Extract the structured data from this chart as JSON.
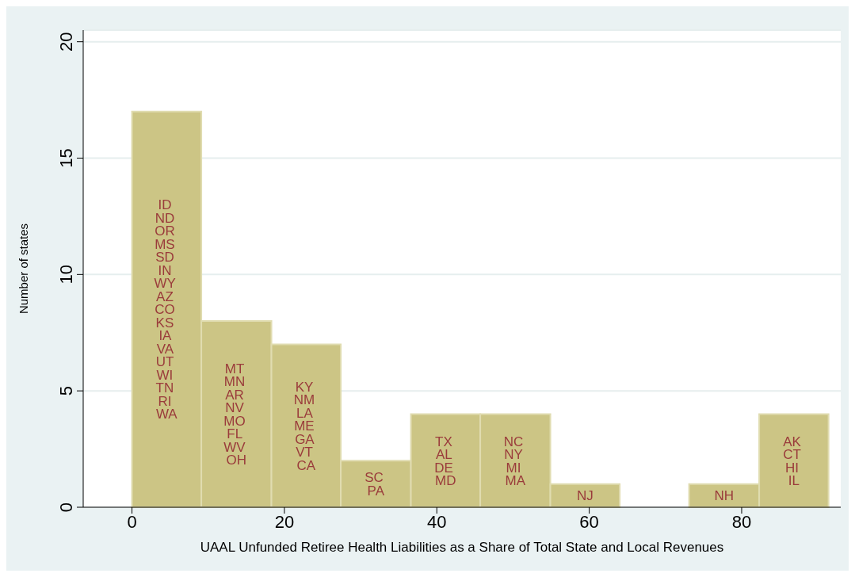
{
  "chart_data": {
    "type": "histogram",
    "xlabel": "UAAL Unfunded Retiree Health Liabilities as a Share of Total State and Local Revenues",
    "ylabel": "Number of states",
    "bins": [
      0,
      9.1,
      18.3,
      27.4,
      36.6,
      45.7,
      54.9,
      64.0,
      73.1,
      82.3,
      91.4
    ],
    "values": [
      17,
      8,
      7,
      2,
      4,
      4,
      1,
      0,
      1,
      4
    ],
    "color": "#ccc585",
    "xlim": [
      -6.4,
      93
    ],
    "xticks": [
      0,
      20,
      40,
      60,
      80
    ],
    "ylim": [
      0,
      20.5
    ],
    "yticks": [
      0,
      5,
      10,
      15,
      20
    ],
    "grid": "y",
    "annotations": [
      "ID ND OR MS SD IN WY AZ CO KS IA VA UT WI TN RI WA",
      "MT MN AR NV MO FL WV OH",
      "KY NM LA ME GA VT CA",
      "SC PA",
      "TX AL DE MD",
      "NC NY MI MA",
      "NJ",
      "NH",
      "AK CT HI IL"
    ]
  }
}
